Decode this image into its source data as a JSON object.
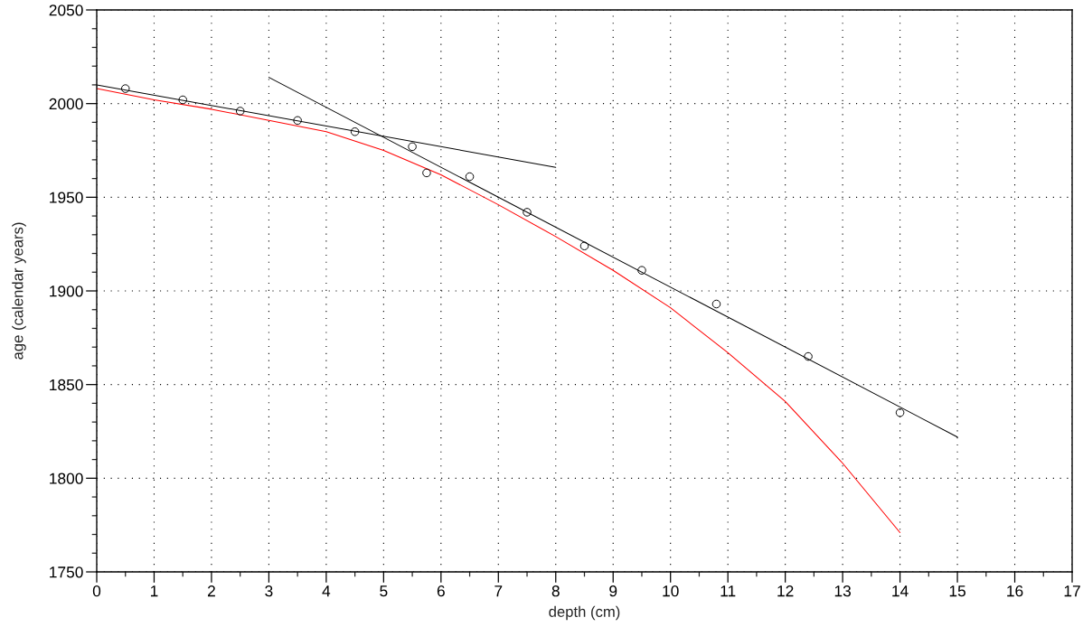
{
  "chart_data": {
    "type": "line",
    "xlabel": "depth (cm)",
    "ylabel": "age (calendar years)",
    "xlim": [
      0,
      17
    ],
    "xticks": [
      0,
      {
        "value": 0.5,
        "label": null
      },
      1,
      {
        "value": 1.5,
        "label": null
      },
      2,
      {
        "value": 2.5,
        "label": null
      },
      3,
      {
        "value": 3.5,
        "label": null
      },
      4,
      {
        "value": 4.5,
        "label": null
      },
      5,
      {
        "value": 5.5,
        "label": null
      },
      6,
      {
        "value": 6.5,
        "label": null
      },
      7,
      {
        "value": 7.5,
        "label": null
      },
      8,
      {
        "value": 8.5,
        "label": null
      },
      9,
      {
        "value": 9.5,
        "label": null
      },
      10,
      {
        "value": 10.5,
        "label": null
      },
      11,
      {
        "value": 11.5,
        "label": null
      },
      12,
      {
        "value": 12.5,
        "label": null
      },
      13,
      {
        "value": 13.5,
        "label": null
      },
      14,
      {
        "value": 14.5,
        "label": null
      },
      15,
      {
        "value": 15.5,
        "label": null
      },
      16,
      {
        "value": 16.5,
        "label": null
      },
      17
    ],
    "ylim": [
      1750,
      2050
    ],
    "yticks": [
      1750,
      {
        "value": 1760,
        "label": null
      },
      {
        "value": 1770,
        "label": null
      },
      {
        "value": 1780,
        "label": null
      },
      {
        "value": 1790,
        "label": null
      },
      1800,
      {
        "value": 1810,
        "label": null
      },
      {
        "value": 1820,
        "label": null
      },
      {
        "value": 1830,
        "label": null
      },
      {
        "value": 1840,
        "label": null
      },
      1850,
      {
        "value": 1860,
        "label": null
      },
      {
        "value": 1870,
        "label": null
      },
      {
        "value": 1880,
        "label": null
      },
      {
        "value": 1890,
        "label": null
      },
      1900,
      {
        "value": 1910,
        "label": null
      },
      {
        "value": 1920,
        "label": null
      },
      {
        "value": 1930,
        "label": null
      },
      {
        "value": 1940,
        "label": null
      },
      1950,
      {
        "value": 1960,
        "label": null
      },
      {
        "value": 1970,
        "label": null
      },
      {
        "value": 1980,
        "label": null
      },
      {
        "value": 1990,
        "label": null
      },
      2000,
      {
        "value": 2010,
        "label": null
      },
      {
        "value": 2020,
        "label": null
      },
      {
        "value": 2030,
        "label": null
      },
      {
        "value": 2040,
        "label": null
      },
      2050
    ],
    "grid": true,
    "series": [
      {
        "type": "scatter",
        "marker": "circle",
        "color": "#000000",
        "x": [
          0.5,
          1.5,
          2.5,
          3.5,
          4.5,
          5.5,
          5.75,
          6.5,
          7.5,
          8.5,
          9.5,
          10.8,
          12.4,
          14
        ],
        "values": [
          2008,
          2002,
          1996,
          1991,
          1985,
          1977,
          1963,
          1961,
          1942,
          1924,
          1911,
          1893,
          1865,
          1835
        ]
      },
      {
        "color": "#000000",
        "line_style": "solid",
        "x": [
          0,
          8
        ],
        "values": [
          2010,
          1966
        ]
      },
      {
        "color": "#000000",
        "line_style": "solid",
        "x": [
          3,
          15
        ],
        "values": [
          2014,
          1822
        ]
      },
      {
        "color": "#ff0000",
        "line_style": "solid",
        "x": [
          0,
          1,
          2,
          3,
          4,
          5,
          6,
          7,
          8,
          9,
          10,
          11,
          12,
          13,
          14
        ],
        "values": [
          2008,
          2002,
          1997,
          1991,
          1985,
          1975,
          1962,
          1946,
          1929,
          1911,
          1891,
          1867,
          1841,
          1808,
          1771
        ]
      }
    ]
  }
}
